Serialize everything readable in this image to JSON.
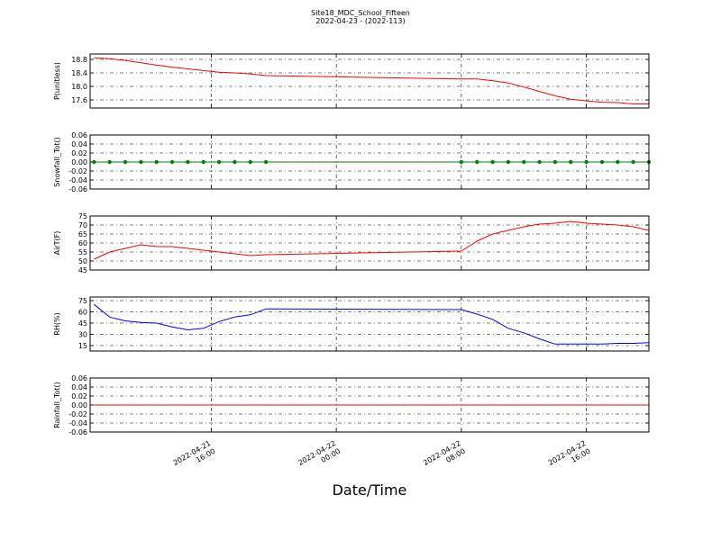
{
  "figure": {
    "title": "Site18_MDC_School_Fifteen",
    "subtitle": "2022-04-23 - (2022-113)",
    "x_label": "Date/Time",
    "xlim": [
      "2022-04-21 08:15",
      "2022-04-22 20:00"
    ],
    "xticks": [
      {
        "value": "2022-04-21 16:00",
        "label": "2022-04-21\n16:00"
      },
      {
        "value": "2022-04-22 00:00",
        "label": "2022-04-22\n00:00"
      },
      {
        "value": "2022-04-22 08:00",
        "label": "2022-04-22\n08:00"
      },
      {
        "value": "2022-04-22 16:00",
        "label": "2022-04-22\n16:00"
      }
    ],
    "x": [
      "2022-04-21 08:30",
      "2022-04-21 09:30",
      "2022-04-21 10:30",
      "2022-04-21 11:30",
      "2022-04-21 12:30",
      "2022-04-21 13:30",
      "2022-04-21 14:30",
      "2022-04-21 15:30",
      "2022-04-21 16:30",
      "2022-04-21 17:30",
      "2022-04-21 18:30",
      "2022-04-21 19:30",
      "2022-04-22 08:00",
      "2022-04-22 09:00",
      "2022-04-22 10:00",
      "2022-04-22 11:00",
      "2022-04-22 12:00",
      "2022-04-22 13:00",
      "2022-04-22 14:00",
      "2022-04-22 15:00",
      "2022-04-22 16:00",
      "2022-04-22 17:00",
      "2022-04-22 18:00",
      "2022-04-22 19:00",
      "2022-04-22 20:00"
    ]
  },
  "chart_data": [
    {
      "type": "line",
      "y_label": "P(unitless)",
      "ylim": [
        17.36,
        18.96
      ],
      "yticks": [
        17.6,
        {
          "value": 18.0,
          "label": "18.0"
        },
        18.4,
        18.8
      ],
      "grid": true,
      "markers": false,
      "series": [
        {
          "color": "#ff0000",
          "values": [
            18.85,
            18.82,
            18.77,
            18.7,
            18.63,
            18.57,
            18.52,
            18.47,
            18.42,
            18.4,
            18.37,
            18.32,
            18.22,
            18.22,
            18.17,
            18.1,
            17.98,
            17.85,
            17.72,
            17.62,
            17.57,
            17.53,
            17.52,
            17.48,
            17.48
          ]
        }
      ]
    },
    {
      "type": "line",
      "y_label": "Snowfall_Tot()",
      "ylim": [
        -0.06,
        0.06
      ],
      "yticks": [
        -0.06,
        -0.04,
        -0.02,
        {
          "value": 0,
          "label": "0.00"
        },
        0.02,
        0.04,
        0.06
      ],
      "grid": true,
      "markers": true,
      "series": [
        {
          "color": "#008000",
          "values": [
            0,
            0,
            0,
            0,
            0,
            0,
            0,
            0,
            0,
            0,
            0,
            0,
            0,
            0,
            0,
            0,
            0,
            0,
            0,
            0,
            0,
            0,
            0,
            0,
            0
          ]
        }
      ]
    },
    {
      "type": "line",
      "y_label": "AirT(F)",
      "ylim": [
        45,
        75
      ],
      "yticks": [
        45,
        50,
        55,
        60,
        65,
        70,
        75
      ],
      "grid": true,
      "markers": false,
      "series": [
        {
          "color": "#ff0000",
          "values": [
            51,
            55,
            57,
            59,
            58,
            58,
            57,
            56,
            55,
            54,
            53,
            53.5,
            55.5,
            61,
            65,
            67,
            69,
            70.5,
            71,
            72,
            71,
            70.5,
            70,
            69,
            67
          ]
        }
      ]
    },
    {
      "type": "line",
      "y_label": "RH(%)",
      "ylim": [
        7.8,
        79.8
      ],
      "yticks": [
        15,
        30,
        45,
        60,
        75
      ],
      "grid": true,
      "markers": false,
      "series": [
        {
          "color": "#0000ff",
          "values": [
            70,
            53,
            48,
            46,
            45,
            40,
            36,
            38,
            47,
            53,
            56,
            64,
            63,
            57,
            50,
            38,
            32,
            24,
            17,
            17,
            17,
            17,
            18,
            18,
            19
          ]
        }
      ]
    },
    {
      "type": "line",
      "y_label": "Rainfall_Tot()",
      "ylim": [
        -0.06,
        0.06
      ],
      "yticks": [
        -0.06,
        -0.04,
        -0.02,
        {
          "value": 0,
          "label": "0.00"
        },
        0.02,
        0.04,
        0.06
      ],
      "grid": true,
      "markers": false,
      "series": [
        {
          "color": "#ff0000",
          "values": [
            0,
            0,
            0,
            0,
            0,
            0,
            0,
            0,
            0,
            0,
            0,
            0,
            0,
            0,
            0,
            0,
            0,
            0,
            0,
            0,
            0,
            0,
            0,
            0,
            0
          ]
        }
      ]
    }
  ]
}
